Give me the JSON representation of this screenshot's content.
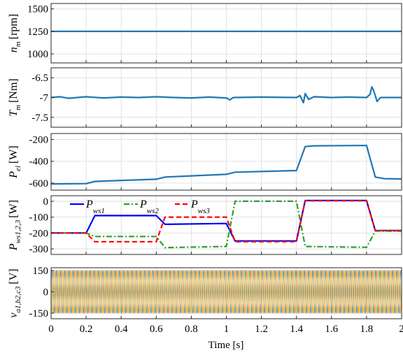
{
  "chart_data": [
    {
      "type": "line",
      "name": "speed",
      "ylabel_sym": "n",
      "ylabel_sub": "m",
      "ylabel_unit": "[rpm]",
      "ylim": [
        900,
        1560
      ],
      "yticks": [
        1000,
        1250,
        1500
      ],
      "ytick_labels": [
        "1000",
        "1250",
        "1500"
      ],
      "series": [
        {
          "color": "#1f77b4",
          "style": "solid",
          "points": [
            [
              0,
              1250
            ],
            [
              2,
              1250
            ]
          ]
        }
      ]
    },
    {
      "type": "line",
      "name": "torque",
      "ylabel_sym": "T",
      "ylabel_sub": "m",
      "ylabel_unit": "[Nm]",
      "ylim": [
        -7.75,
        -6.25
      ],
      "yticks": [
        -7.5,
        -7,
        -6.5
      ],
      "ytick_labels": [
        "-7.5",
        "-7",
        "-6.5"
      ],
      "series": [
        {
          "color": "#1f77b4",
          "style": "solid",
          "points": [
            [
              0,
              -7.0
            ],
            [
              0.05,
              -6.98
            ],
            [
              0.1,
              -7.02
            ],
            [
              0.2,
              -6.98
            ],
            [
              0.3,
              -7.01
            ],
            [
              0.4,
              -6.99
            ],
            [
              0.5,
              -7.0
            ],
            [
              0.6,
              -6.98
            ],
            [
              0.7,
              -7.0
            ],
            [
              0.8,
              -7.01
            ],
            [
              0.9,
              -6.99
            ],
            [
              1.0,
              -7.01
            ],
            [
              1.02,
              -7.06
            ],
            [
              1.04,
              -7.0
            ],
            [
              1.2,
              -6.99
            ],
            [
              1.4,
              -7.0
            ],
            [
              1.42,
              -6.95
            ],
            [
              1.44,
              -7.13
            ],
            [
              1.45,
              -6.9
            ],
            [
              1.47,
              -7.05
            ],
            [
              1.5,
              -6.98
            ],
            [
              1.6,
              -7.0
            ],
            [
              1.7,
              -6.99
            ],
            [
              1.8,
              -7.0
            ],
            [
              1.82,
              -6.92
            ],
            [
              1.83,
              -6.73
            ],
            [
              1.84,
              -6.82
            ],
            [
              1.85,
              -6.95
            ],
            [
              1.86,
              -7.1
            ],
            [
              1.88,
              -7.0
            ],
            [
              1.95,
              -7.0
            ],
            [
              2.0,
              -7.0
            ]
          ]
        }
      ]
    },
    {
      "type": "line",
      "name": "electrical power",
      "ylabel_sym": "P",
      "ylabel_sub": "el",
      "ylabel_unit": "[W]",
      "ylim": [
        -665,
        -145
      ],
      "yticks": [
        -600,
        -400,
        -200
      ],
      "ytick_labels": [
        "-600",
        "-400",
        "-200"
      ],
      "series": [
        {
          "color": "#1f77b4",
          "style": "solid",
          "points": [
            [
              0,
              -608
            ],
            [
              0.2,
              -605
            ],
            [
              0.25,
              -585
            ],
            [
              0.6,
              -565
            ],
            [
              0.65,
              -545
            ],
            [
              1.0,
              -520
            ],
            [
              1.05,
              -500
            ],
            [
              1.4,
              -485
            ],
            [
              1.45,
              -265
            ],
            [
              1.5,
              -258
            ],
            [
              1.8,
              -255
            ],
            [
              1.85,
              -545
            ],
            [
              1.9,
              -560
            ],
            [
              2.0,
              -562
            ]
          ]
        }
      ]
    },
    {
      "type": "line",
      "name": "winding powers",
      "ylabel_sym": "P",
      "ylabel_sub": "ws1,2,3",
      "ylabel_unit": "[W]",
      "ylim": [
        -335,
        35
      ],
      "yticks": [
        -300,
        -200,
        -100,
        0
      ],
      "ytick_labels": [
        "-300",
        "-200",
        "-100",
        "0"
      ],
      "legend": [
        "P",
        "P",
        "P"
      ],
      "legend_sub": [
        "ws1",
        "ws2",
        "ws3"
      ],
      "series": [
        {
          "name_sym": "P",
          "name_sub": "ws1",
          "color": "#0000ff",
          "style": "solid",
          "points": [
            [
              0,
              -200
            ],
            [
              0.2,
              -200
            ],
            [
              0.25,
              -90
            ],
            [
              0.6,
              -90
            ],
            [
              0.65,
              -145
            ],
            [
              1.0,
              -140
            ],
            [
              1.05,
              -250
            ],
            [
              1.4,
              -250
            ],
            [
              1.45,
              5
            ],
            [
              1.8,
              5
            ],
            [
              1.85,
              -185
            ],
            [
              2.0,
              -185
            ]
          ]
        },
        {
          "name_sym": "P",
          "name_sub": "ws2",
          "color": "#2ca02c",
          "style": "dashdot",
          "points": [
            [
              0,
              -200
            ],
            [
              0.2,
              -200
            ],
            [
              0.25,
              -222
            ],
            [
              0.6,
              -222
            ],
            [
              0.65,
              -292
            ],
            [
              1.0,
              -285
            ],
            [
              1.05,
              0
            ],
            [
              1.4,
              0
            ],
            [
              1.45,
              -285
            ],
            [
              1.8,
              -290
            ],
            [
              1.85,
              -188
            ],
            [
              2.0,
              -188
            ]
          ]
        },
        {
          "name_sym": "P",
          "name_sub": "ws3",
          "color": "#ff0000",
          "style": "dashed",
          "points": [
            [
              0,
              -200
            ],
            [
              0.2,
              -200
            ],
            [
              0.25,
              -255
            ],
            [
              0.6,
              -255
            ],
            [
              0.65,
              -100
            ],
            [
              1.0,
              -100
            ],
            [
              1.05,
              -255
            ],
            [
              1.4,
              -255
            ],
            [
              1.45,
              3
            ],
            [
              1.8,
              3
            ],
            [
              1.85,
              -185
            ],
            [
              2.0,
              -185
            ]
          ]
        }
      ]
    },
    {
      "type": "line",
      "name": "phase voltages",
      "ylabel_sym": "v",
      "ylabel_sub": "a1,b2,c3",
      "ylabel_unit": "[V]",
      "ylim": [
        -190,
        170
      ],
      "yticks": [
        -150,
        0,
        150
      ],
      "ytick_labels": [
        "-150",
        "0",
        "150"
      ],
      "sinusoid": {
        "amplitude": 150,
        "frequency_hz": 41.7,
        "phases": [
          {
            "color": "#1f77b4",
            "shift_deg": 0
          },
          {
            "color": "#ff7f0e",
            "shift_deg": -120
          },
          {
            "color": "#d4b000",
            "shift_deg": 120
          }
        ]
      }
    }
  ],
  "shared_x": {
    "xlim": [
      0,
      2
    ],
    "ticks": [
      0,
      0.2,
      0.4,
      0.6,
      0.8,
      1,
      1.2,
      1.4,
      1.6,
      1.8,
      2
    ],
    "tick_labels": [
      "0",
      "0.2",
      "0.4",
      "0.6",
      "0.8",
      "1",
      "1.2",
      "1.4",
      "1.6",
      "1.8",
      "2"
    ],
    "xlabel": "Time [s]"
  }
}
